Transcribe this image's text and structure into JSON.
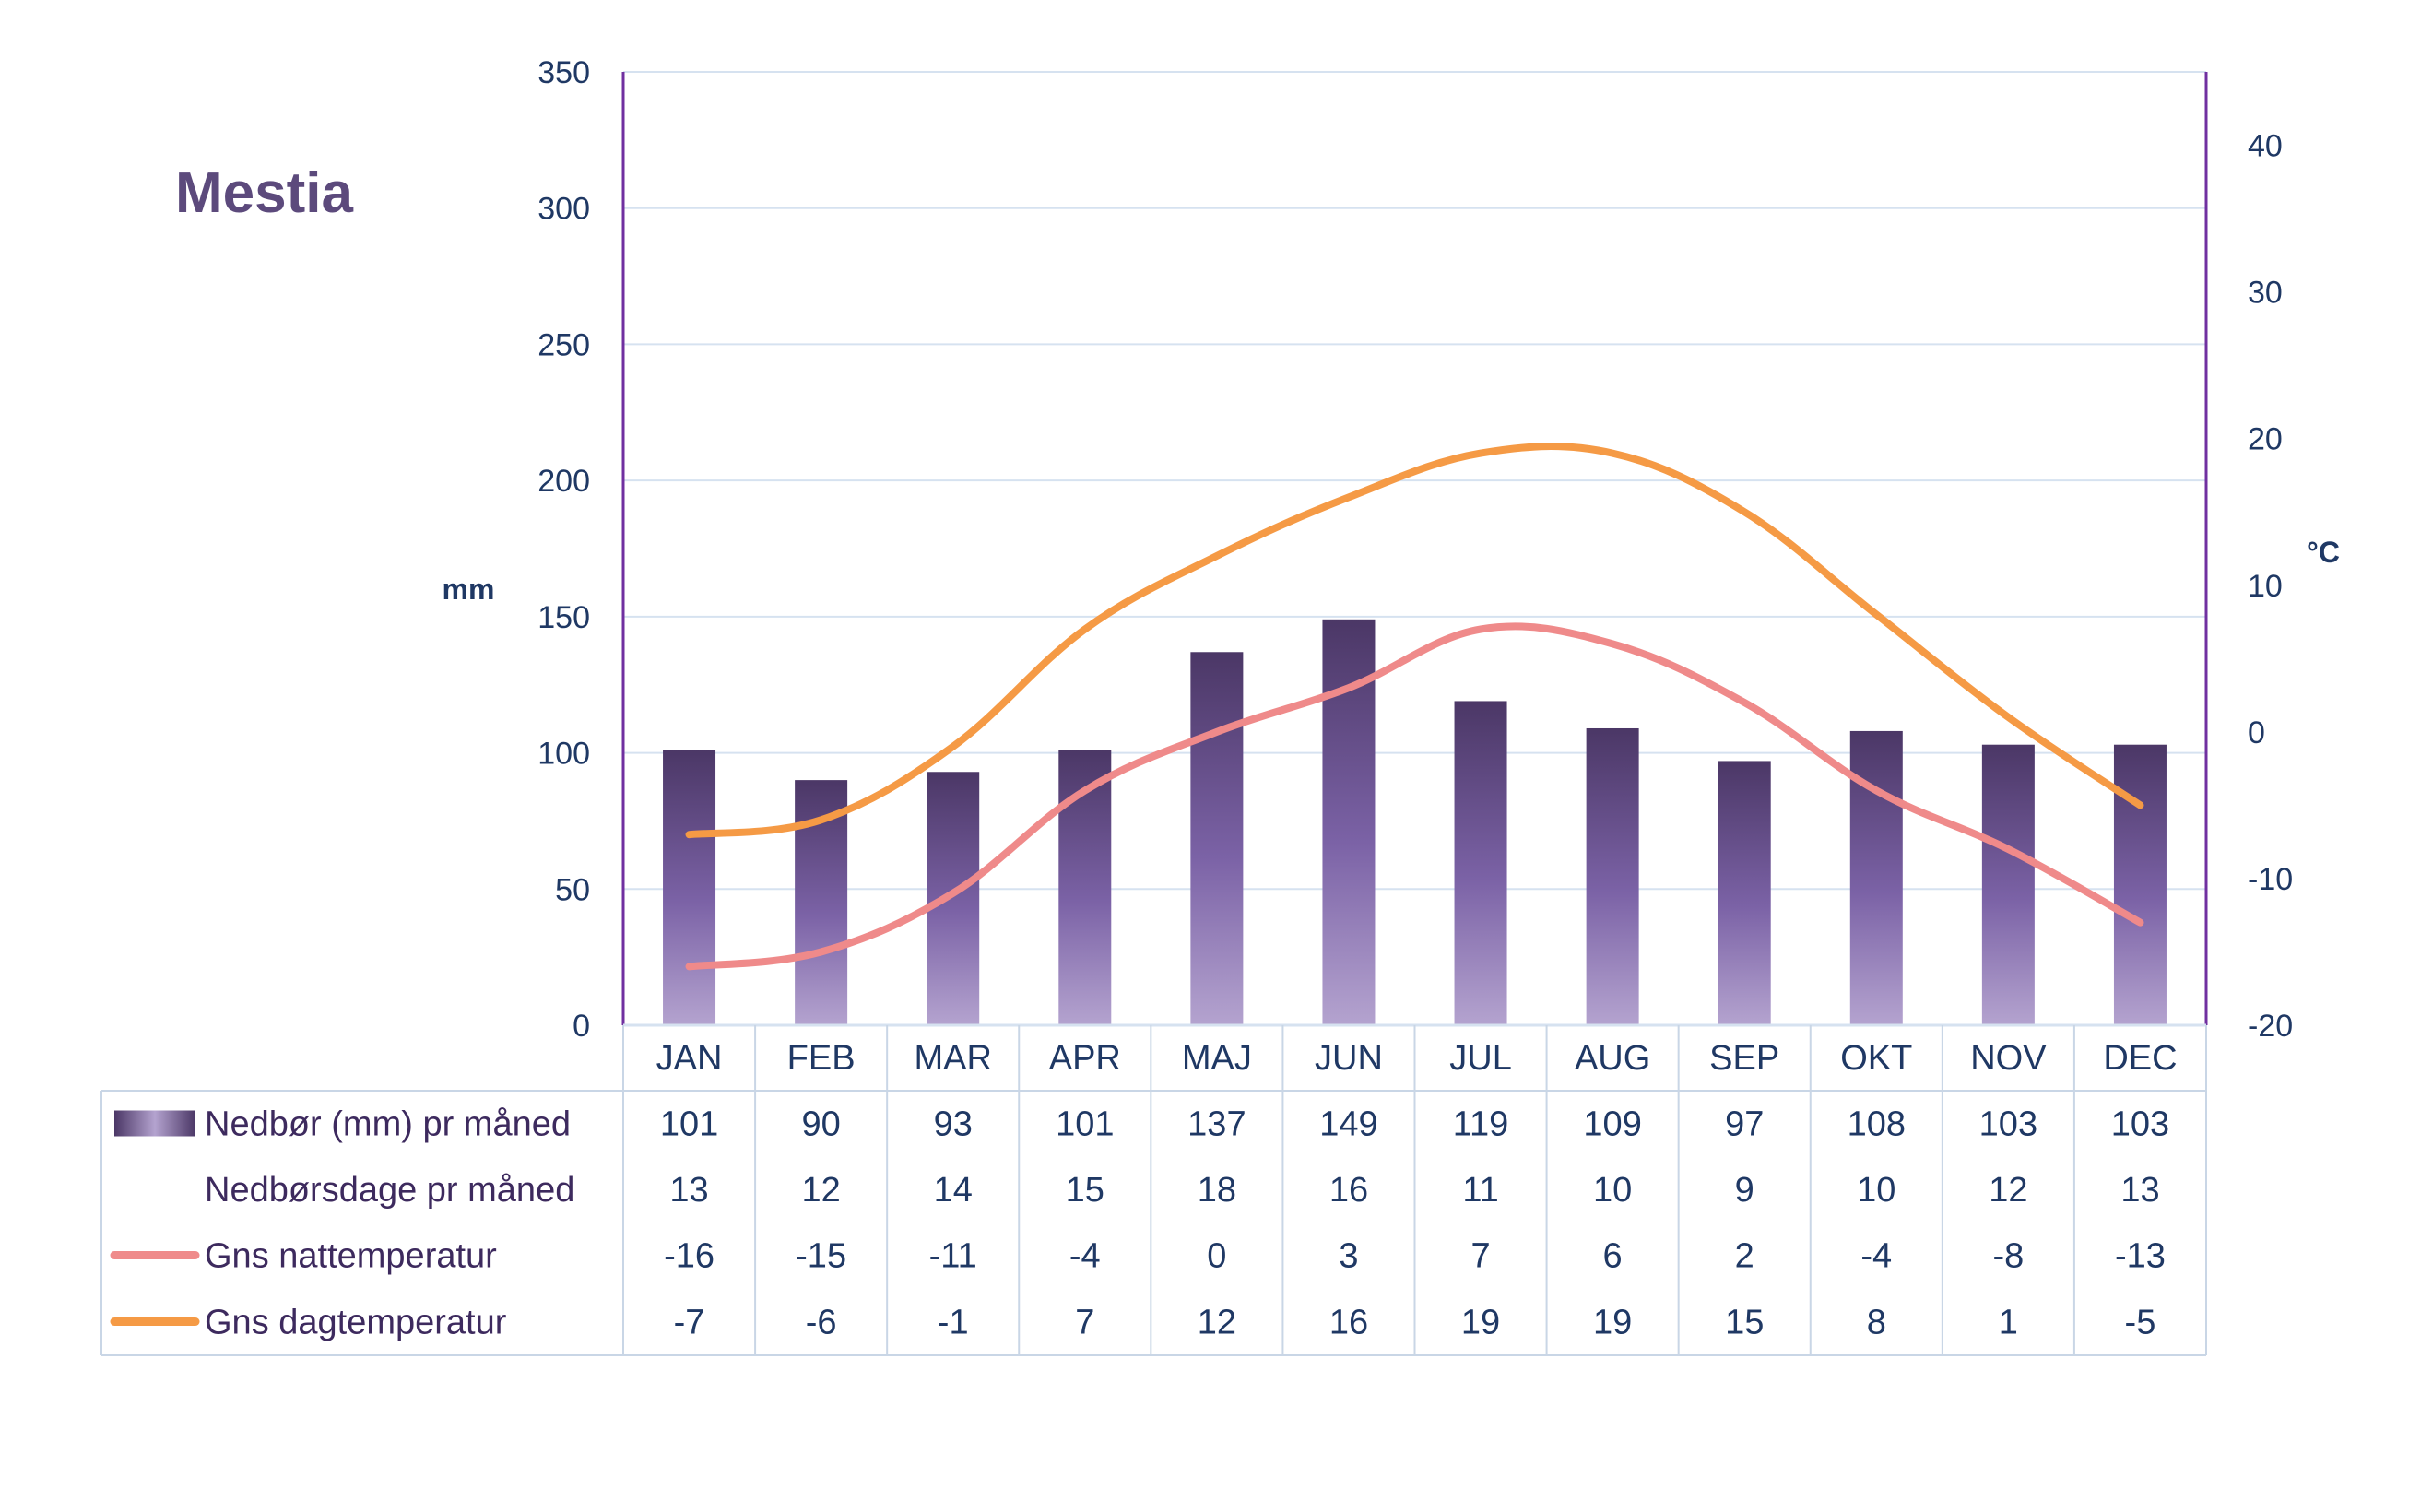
{
  "chart_data": {
    "type": "bar",
    "title": "Mestia",
    "ylabel_left": "mm",
    "ylabel_right": "°C",
    "ylim_left": [
      0,
      350
    ],
    "yticks_left": [
      "0",
      "50",
      "100",
      "150",
      "200",
      "250",
      "300",
      "350"
    ],
    "ylim_right": [
      -20,
      45
    ],
    "yticks_right": [
      "-20",
      "-10",
      "0",
      "10",
      "20",
      "30",
      "40"
    ],
    "categories": [
      "JAN",
      "FEB",
      "MAR",
      "APR",
      "MAJ",
      "JUN",
      "JUL",
      "AUG",
      "SEP",
      "OKT",
      "NOV",
      "DEC"
    ],
    "grid": true,
    "series": [
      {
        "name": "Nedbør (mm) pr måned",
        "kind": "bar",
        "axis": "left",
        "values": [
          "101",
          "90",
          "93",
          "101",
          "137",
          "149",
          "119",
          "109",
          "97",
          "108",
          "103",
          "103"
        ]
      },
      {
        "name": "Nedbørsdage pr måned",
        "kind": "table",
        "values": [
          "13",
          "12",
          "14",
          "15",
          "18",
          "16",
          "11",
          "10",
          "9",
          "10",
          "12",
          "13"
        ]
      },
      {
        "name": "Gns nattemperatur",
        "kind": "line",
        "axis": "right",
        "values": [
          "-16",
          "-15",
          "-11",
          "-4",
          "0",
          "3",
          "7",
          "6",
          "2",
          "-4",
          "-8",
          "-13"
        ]
      },
      {
        "name": "Gns dagtemperatur",
        "kind": "line",
        "axis": "right",
        "values": [
          "-7",
          "-6",
          "-1",
          "7",
          "12",
          "16",
          "19",
          "19",
          "15",
          "8",
          "1",
          "-5"
        ]
      }
    ],
    "colors": {
      "bar_top": "#4b3766",
      "bar_bottom": "#b4a3cf",
      "night_line": "#ef8a8a",
      "day_line": "#f59a45",
      "axis": "#7030a0",
      "grid": "#d6e2f0",
      "table_border": "#c9d6e6"
    }
  }
}
